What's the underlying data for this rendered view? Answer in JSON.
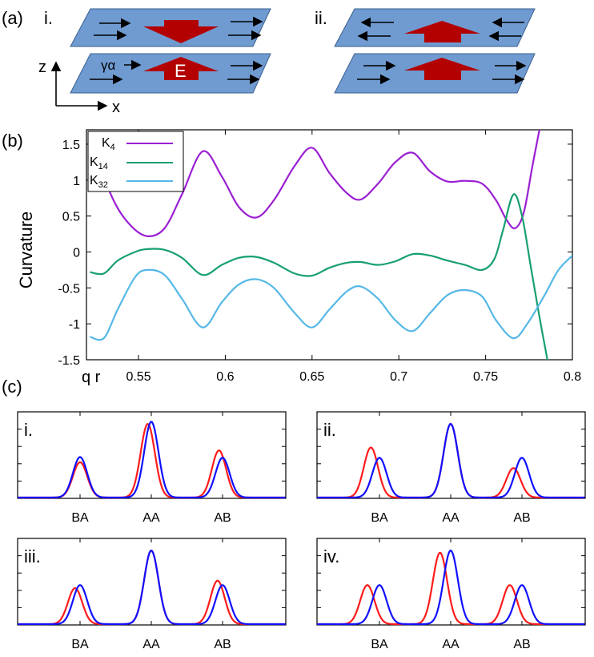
{
  "panel_a": {
    "label": "(a)",
    "sub_i": "i.",
    "sub_ii": "ii.",
    "axis_z": "z",
    "axis_x": "x",
    "field_label": "E",
    "gamma_label": "γα",
    "plane_color": "#6f9bd1",
    "arrow_color": "#b30000"
  },
  "panel_b": {
    "label": "(b)",
    "qr_label": "q r"
  },
  "panel_c": {
    "label": "(c)",
    "subpanels": [
      {
        "label": "i.",
        "ticks": [
          "BA",
          "AA",
          "AB"
        ]
      },
      {
        "label": "ii.",
        "ticks": [
          "BA",
          "AA",
          "AB"
        ]
      },
      {
        "label": "iii.",
        "ticks": [
          "BA",
          "AA",
          "AB"
        ]
      },
      {
        "label": "iv.",
        "ticks": [
          "BA",
          "AA",
          "AB"
        ]
      }
    ]
  },
  "chart_data": [
    {
      "type": "line",
      "title": "",
      "xlabel": "q r",
      "ylabel": "Curvature",
      "xlim": [
        0.52,
        0.8
      ],
      "ylim": [
        -1.5,
        1.7
      ],
      "xticks": [
        "0.55",
        "0.6",
        "0.65",
        "0.7",
        "0.75",
        "0.8"
      ],
      "yticks": [
        "1.5",
        "1",
        "0.5",
        "0",
        "-0.5",
        "-1",
        "-1.5"
      ],
      "legend": [
        "K4",
        "K14",
        "K32"
      ],
      "series": [
        {
          "name": "K4",
          "color": "#9b1fd2",
          "x": [
            0.522,
            0.535,
            0.545,
            0.555,
            0.565,
            0.575,
            0.587,
            0.598,
            0.608,
            0.618,
            0.628,
            0.64,
            0.65,
            0.66,
            0.67,
            0.678,
            0.688,
            0.698,
            0.708,
            0.718,
            0.728,
            0.738,
            0.748,
            0.756,
            0.762,
            0.767,
            0.772,
            0.777,
            0.781
          ],
          "y": [
            1.55,
            0.75,
            0.38,
            0.22,
            0.33,
            0.8,
            1.4,
            1.05,
            0.62,
            0.48,
            0.72,
            1.2,
            1.45,
            1.1,
            0.82,
            0.73,
            0.95,
            1.25,
            1.38,
            1.12,
            0.98,
            0.99,
            0.95,
            0.72,
            0.45,
            0.33,
            0.55,
            1.2,
            1.7
          ]
        },
        {
          "name": "K14",
          "color": "#17a06e",
          "x": [
            0.522,
            0.53,
            0.538,
            0.548,
            0.555,
            0.565,
            0.575,
            0.587,
            0.598,
            0.608,
            0.618,
            0.628,
            0.64,
            0.65,
            0.66,
            0.67,
            0.678,
            0.688,
            0.698,
            0.708,
            0.718,
            0.728,
            0.738,
            0.748,
            0.755,
            0.76,
            0.766,
            0.771,
            0.776,
            0.781,
            0.786
          ],
          "y": [
            -0.28,
            -0.3,
            -0.12,
            0.0,
            0.04,
            0.03,
            -0.08,
            -0.32,
            -0.18,
            -0.08,
            -0.07,
            -0.15,
            -0.3,
            -0.33,
            -0.22,
            -0.15,
            -0.14,
            -0.18,
            -0.13,
            -0.03,
            -0.05,
            -0.12,
            -0.18,
            -0.25,
            -0.1,
            0.3,
            0.8,
            0.5,
            -0.2,
            -0.9,
            -1.55
          ]
        },
        {
          "name": "K32",
          "color": "#56b8e6",
          "x": [
            0.522,
            0.53,
            0.538,
            0.548,
            0.555,
            0.565,
            0.575,
            0.587,
            0.598,
            0.608,
            0.618,
            0.628,
            0.64,
            0.65,
            0.66,
            0.67,
            0.678,
            0.688,
            0.698,
            0.708,
            0.718,
            0.728,
            0.738,
            0.748,
            0.756,
            0.766,
            0.774,
            0.784,
            0.792,
            0.8
          ],
          "y": [
            -1.18,
            -1.2,
            -0.8,
            -0.35,
            -0.25,
            -0.32,
            -0.65,
            -1.05,
            -0.7,
            -0.45,
            -0.38,
            -0.5,
            -0.85,
            -1.05,
            -0.8,
            -0.55,
            -0.48,
            -0.65,
            -0.95,
            -1.1,
            -0.85,
            -0.6,
            -0.53,
            -0.62,
            -0.95,
            -1.2,
            -1.0,
            -0.6,
            -0.25,
            -0.05
          ]
        }
      ]
    },
    {
      "type": "line",
      "subpanel": "i.",
      "categories": [
        "BA",
        "AA",
        "AB"
      ],
      "series": [
        {
          "name": "red",
          "color": "#ff1b1b",
          "peaks": [
            {
              "x": 0.0,
              "h": 0.48
            },
            {
              "x": 0.95,
              "h": 1.0
            },
            {
              "x": 1.95,
              "h": 0.64
            }
          ]
        },
        {
          "name": "blue",
          "color": "#1010ff",
          "peaks": [
            {
              "x": 0.0,
              "h": 0.55
            },
            {
              "x": 1.0,
              "h": 1.03
            },
            {
              "x": 2.0,
              "h": 0.54
            }
          ]
        }
      ]
    },
    {
      "type": "line",
      "subpanel": "ii.",
      "categories": [
        "BA",
        "AA",
        "AB"
      ],
      "series": [
        {
          "name": "red",
          "color": "#ff1b1b",
          "peaks": [
            {
              "x": -0.12,
              "h": 0.68
            },
            {
              "x": 1.0,
              "h": 1.0
            },
            {
              "x": 1.88,
              "h": 0.4
            }
          ]
        },
        {
          "name": "blue",
          "color": "#1010ff",
          "peaks": [
            {
              "x": 0.0,
              "h": 0.54
            },
            {
              "x": 1.0,
              "h": 1.0
            },
            {
              "x": 2.0,
              "h": 0.54
            }
          ]
        }
      ]
    },
    {
      "type": "line",
      "subpanel": "iii.",
      "categories": [
        "BA",
        "AA",
        "AB"
      ],
      "series": [
        {
          "name": "red",
          "color": "#ff1b1b",
          "peaks": [
            {
              "x": -0.07,
              "h": 0.49
            },
            {
              "x": 1.0,
              "h": 1.0
            },
            {
              "x": 1.93,
              "h": 0.59
            }
          ]
        },
        {
          "name": "blue",
          "color": "#1010ff",
          "peaks": [
            {
              "x": 0.0,
              "h": 0.53
            },
            {
              "x": 1.0,
              "h": 1.0
            },
            {
              "x": 2.0,
              "h": 0.53
            }
          ]
        }
      ]
    },
    {
      "type": "line",
      "subpanel": "iv.",
      "categories": [
        "BA",
        "AA",
        "AB"
      ],
      "series": [
        {
          "name": "red",
          "color": "#ff1b1b",
          "peaks": [
            {
              "x": -0.17,
              "h": 0.53
            },
            {
              "x": 0.85,
              "h": 0.97
            },
            {
              "x": 1.83,
              "h": 0.53
            }
          ]
        },
        {
          "name": "blue",
          "color": "#1010ff",
          "peaks": [
            {
              "x": 0.0,
              "h": 0.53
            },
            {
              "x": 1.0,
              "h": 1.0
            },
            {
              "x": 2.0,
              "h": 0.53
            }
          ]
        }
      ]
    }
  ]
}
